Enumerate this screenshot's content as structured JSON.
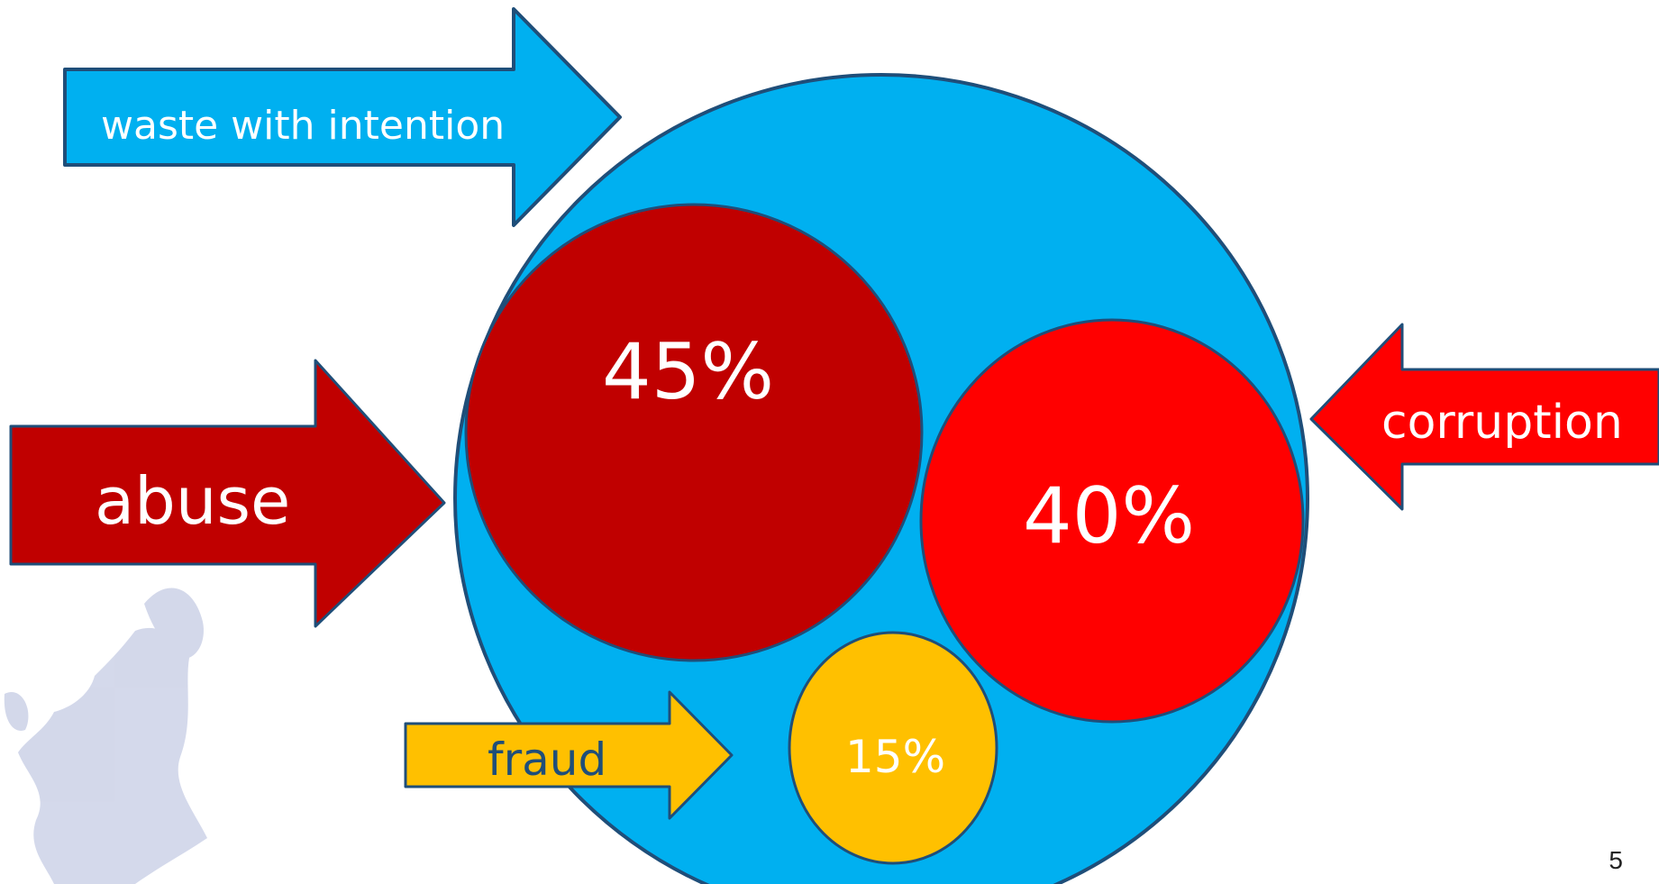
{
  "diagram": {
    "main_circle": {
      "label": "waste with intention",
      "color": "#00b0f0"
    },
    "segments": [
      {
        "id": "abuse",
        "value": "45%",
        "arrow_label": "abuse",
        "color": "#c00000"
      },
      {
        "id": "corruption",
        "value": "40%",
        "arrow_label": "corruption",
        "color": "#ff0000"
      },
      {
        "id": "fraud",
        "value": "15%",
        "arrow_label": "fraud",
        "color": "#ffc000"
      }
    ],
    "outline_color": "#1f4e79"
  },
  "slide": {
    "page_number": "5"
  }
}
